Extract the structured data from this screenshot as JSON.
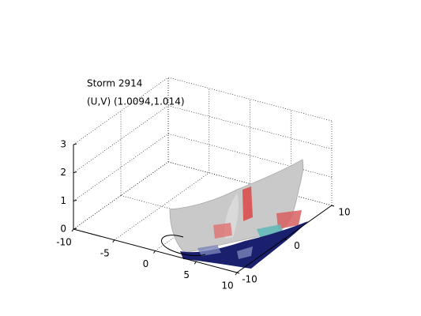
{
  "chart_data": {
    "type": "surface3d",
    "title": "Storm 2914",
    "subtitle": "(U,V) (1.0094,1.014)",
    "xlim": [
      -10,
      10
    ],
    "xticks": [
      -10,
      -5,
      0,
      5,
      10
    ],
    "ylim": [
      -10,
      10
    ],
    "yticks": [
      -10,
      0,
      10
    ],
    "zlim": [
      0,
      3
    ],
    "zticks": [
      0,
      1,
      2,
      3
    ],
    "grid": true
  }
}
